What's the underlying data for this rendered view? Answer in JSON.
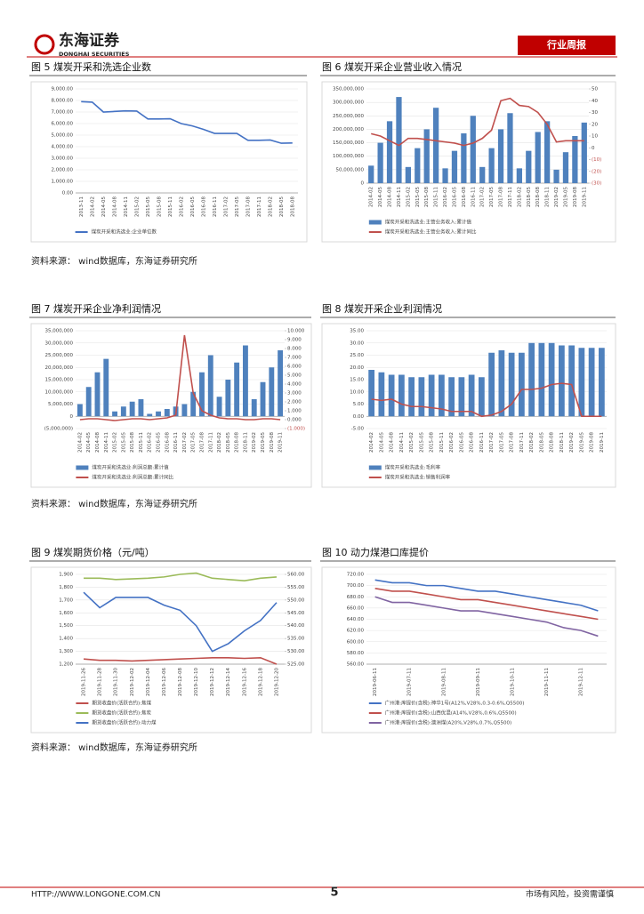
{
  "header": {
    "logo": "东海证券",
    "logo_en": "DONGHAI SECURITIES",
    "tag": "行业周报"
  },
  "sources": [
    "资料来源：  wind数据库，东海证券研究所",
    "资料来源：  wind数据库，东海证券研究所",
    "资料来源：  wind数据库，东海证券研究所"
  ],
  "footer": {
    "url": "HTTP://WWW.LONGONE.COM.CN",
    "page": "5",
    "disclaimer": "市场有风险，投资需谨慎"
  },
  "chart_data": [
    {
      "type": "line",
      "title": "图 5   煤炭开采和洗选企业数",
      "grid": true,
      "categories": [
        "2013-11",
        "2014-02",
        "2014-05",
        "2014-08",
        "2014-11",
        "2015-02",
        "2015-05",
        "2015-08",
        "2015-11",
        "2016-02",
        "2016-05",
        "2016-08",
        "2016-11",
        "2017-02",
        "2017-05",
        "2017-08",
        "2017-11",
        "2018-02",
        "2018-05",
        "2018-08"
      ],
      "series": [
        {
          "name": "煤炭开采和洗选业:企业单位数",
          "color": "#4472c4",
          "values": [
            7900,
            7850,
            7000,
            7050,
            7100,
            7080,
            6400,
            6400,
            6420,
            6000,
            5800,
            5500,
            5150,
            5150,
            5150,
            4550,
            4550,
            4580,
            4300,
            4320
          ]
        }
      ],
      "ylim": [
        0,
        9000
      ],
      "yticks": [
        {
          "value": 0,
          "label": "0.00"
        },
        {
          "value": 1000,
          "label": "1,000.00"
        },
        {
          "value": 2000,
          "label": "2,000.00"
        },
        {
          "value": 3000,
          "label": "3,000.00"
        },
        {
          "value": 4000,
          "label": "4,000.00"
        },
        {
          "value": 5000,
          "label": "5,000.00"
        },
        {
          "value": 6000,
          "label": "6,000.00"
        },
        {
          "value": 7000,
          "label": "7,000.00"
        },
        {
          "value": 8000,
          "label": "8,000.00"
        },
        {
          "value": 9000,
          "label": "9,000.00"
        }
      ]
    },
    {
      "type": "combo",
      "title": "图 6   煤炭开采企业营业收入情况",
      "grid": true,
      "categories": [
        "2014-02",
        "2014-05",
        "2014-08",
        "2014-11",
        "2015-02",
        "2015-05",
        "2015-08",
        "2015-11",
        "2016-02",
        "2016-05",
        "2016-08",
        "2016-11",
        "2017-02",
        "2017-05",
        "2017-08",
        "2017-11",
        "2018-02",
        "2018-05",
        "2018-08",
        "2018-11",
        "2019-02",
        "2019-05",
        "2019-08",
        "2019-11"
      ],
      "series": [
        {
          "name": "煤炭开采和洗选业:主营业务收入:累计值",
          "type": "bar",
          "color": "#4f81bd",
          "values": [
            65000000,
            150000000,
            230000000,
            320000000,
            60000000,
            130000000,
            200000000,
            280000000,
            55000000,
            120000000,
            185000000,
            250000000,
            60000000,
            130000000,
            200000000,
            260000000,
            55000000,
            120000000,
            190000000,
            230000000,
            50000000,
            115000000,
            175000000,
            225000000
          ]
        },
        {
          "name": "煤炭开采和洗选业:主营业务收入:累计同比",
          "type": "line",
          "axis": "y2",
          "color": "#c0504d",
          "values": [
            12,
            10,
            6,
            2,
            8,
            8,
            7,
            6,
            5,
            4,
            2,
            4,
            8,
            15,
            40,
            42,
            36,
            35,
            30,
            20,
            5,
            6,
            6,
            6
          ]
        }
      ],
      "ylim": [
        0,
        350000000
      ],
      "yticks": [
        0,
        {
          "value": 50000000,
          "label": "50,000,000"
        },
        {
          "value": 100000000,
          "label": "100,000,000"
        },
        {
          "value": 150000000,
          "label": "150,000,000"
        },
        {
          "value": 200000000,
          "label": "200,000,000"
        },
        {
          "value": 250000000,
          "label": "250,000,000"
        },
        {
          "value": 300000000,
          "label": "300,000,000"
        },
        {
          "value": 350000000,
          "label": "350,000,000"
        }
      ],
      "y2lim": [
        -30,
        50
      ],
      "y2ticks": [
        {
          "value": -30,
          "label": "(30)"
        },
        {
          "value": -20,
          "label": "(20)"
        },
        {
          "value": -10,
          "label": "(10)"
        },
        0,
        10,
        20,
        30,
        40,
        50
      ]
    },
    {
      "type": "combo",
      "title": "图 7   煤炭开采企业净利润情况",
      "grid": true,
      "categories": [
        "2014-02",
        "2014-05",
        "2014-08",
        "2014-11",
        "2015-02",
        "2015-05",
        "2015-08",
        "2015-11",
        "2016-02",
        "2016-05",
        "2016-08",
        "2016-11",
        "2017-02",
        "2017-05",
        "2017-08",
        "2017-11",
        "2018-02",
        "2018-05",
        "2018-08",
        "2018-11",
        "2019-02",
        "2019-05",
        "2019-08",
        "2019-11"
      ],
      "series": [
        {
          "name": "煤炭开采和洗选业:利润总额:累计值",
          "type": "bar",
          "color": "#4f81bd",
          "values": [
            5000000,
            12000000,
            18000000,
            23500000,
            2000000,
            4000000,
            6000000,
            7000000,
            1000000,
            2000000,
            3000000,
            4000000,
            5000000,
            10000000,
            18000000,
            25000000,
            8000000,
            15000000,
            22000000,
            29000000,
            7000000,
            14000000,
            20000000,
            27000000
          ]
        },
        {
          "name": "煤炭开采和洗选业:利润总额:累计同比",
          "type": "line",
          "axis": "y2",
          "color": "#c0504d",
          "values": [
            0,
            0.1,
            0.1,
            0,
            -0.1,
            0,
            0.1,
            0.1,
            0,
            0.1,
            0.2,
            0.5,
            9.5,
            3,
            1,
            0.5,
            0.2,
            0.1,
            0.1,
            0,
            0,
            0.1,
            0.1,
            0
          ]
        }
      ],
      "ylim": [
        -5000000,
        35000000
      ],
      "yticks": [
        {
          "value": -5000000,
          "label": "(5,000,000)"
        },
        0,
        {
          "value": 5000000,
          "label": "5,000,000"
        },
        {
          "value": 10000000,
          "label": "10,000,000"
        },
        {
          "value": 15000000,
          "label": "15,000,000"
        },
        {
          "value": 20000000,
          "label": "20,000,000"
        },
        {
          "value": 25000000,
          "label": "25,000,000"
        },
        {
          "value": 30000000,
          "label": "30,000,000"
        },
        {
          "value": 35000000,
          "label": "35,000,000"
        }
      ],
      "y2lim": [
        -1,
        10
      ],
      "y2ticks": [
        {
          "value": -1,
          "label": "(1.000)"
        },
        {
          "value": 0,
          "label": "0.000"
        },
        {
          "value": 1,
          "label": "1.000"
        },
        {
          "value": 2,
          "label": "2.000"
        },
        {
          "value": 3,
          "label": "3.000"
        },
        {
          "value": 4,
          "label": "4.000"
        },
        {
          "value": 5,
          "label": "5.000"
        },
        {
          "value": 6,
          "label": "6.000"
        },
        {
          "value": 7,
          "label": "7.000"
        },
        {
          "value": 8,
          "label": "8.000"
        },
        {
          "value": 9,
          "label": "9.000"
        },
        {
          "value": 10,
          "label": "10.000"
        }
      ]
    },
    {
      "type": "combo",
      "title": "图 8   煤炭开采企业利润情况",
      "grid": true,
      "categories": [
        "2014-02",
        "2014-05",
        "2014-08",
        "2014-11",
        "2015-02",
        "2015-05",
        "2015-08",
        "2015-11",
        "2016-02",
        "2016-05",
        "2016-08",
        "2016-11",
        "2017-02",
        "2017-05",
        "2017-08",
        "2017-11",
        "2018-02",
        "2018-05",
        "2018-08",
        "2018-11",
        "2019-02",
        "2019-05",
        "2019-08",
        "2019-11"
      ],
      "series": [
        {
          "name": "煤炭开采和洗选业:毛利率",
          "type": "bar",
          "color": "#4f81bd",
          "values": [
            19,
            18,
            17,
            17,
            16,
            16,
            17,
            17,
            16,
            16,
            17,
            16,
            26,
            27,
            26,
            26,
            30,
            30,
            30,
            29,
            29,
            28,
            28,
            28
          ]
        },
        {
          "name": "煤炭开采和洗选业:销售利润率",
          "type": "line",
          "color": "#c0504d",
          "values": [
            7,
            6.5,
            7,
            5,
            4,
            4,
            3.5,
            3,
            2,
            2,
            2,
            0,
            0.5,
            2,
            5,
            11,
            11,
            11.5,
            13,
            13.5,
            13,
            0,
            0,
            0
          ]
        }
      ],
      "ylim": [
        -5,
        35
      ],
      "yticks": [
        {
          "value": -5,
          "label": "-5.00"
        },
        {
          "value": 0,
          "label": "0.00"
        },
        {
          "value": 5,
          "label": "5.00"
        },
        {
          "value": 10,
          "label": "10.00"
        },
        {
          "value": 15,
          "label": "15.00"
        },
        {
          "value": 20,
          "label": "20.00"
        },
        {
          "value": 25,
          "label": "25.00"
        },
        {
          "value": 30,
          "label": "30.00"
        },
        {
          "value": 35,
          "label": "35.00"
        }
      ]
    },
    {
      "type": "line",
      "title": "图 9   煤炭期货价格（元/吨）",
      "grid": true,
      "categories": [
        "2019-11-26",
        "2019-11-28",
        "2019-11-30",
        "2019-12-02",
        "2019-12-04",
        "2019-12-06",
        "2019-12-08",
        "2019-12-10",
        "2019-12-12",
        "2019-12-14",
        "2019-12-16",
        "2019-12-18",
        "2019-12-20"
      ],
      "series": [
        {
          "name": "期货收盘价(活跃合约):焦煤",
          "color": "#c0504d",
          "values": [
            1240,
            1230,
            1230,
            1225,
            1230,
            1235,
            1240,
            1245,
            1250,
            1250,
            1245,
            1250,
            1200
          ]
        },
        {
          "name": "期货收盘价(活跃合约):焦炭",
          "color": "#9bbb59",
          "values": [
            1870,
            1870,
            1860,
            1865,
            1870,
            1880,
            1900,
            1910,
            1870,
            1860,
            1850,
            1870,
            1880
          ]
        },
        {
          "name": "期货收盘价(活跃合约):动力煤",
          "axis": "y2",
          "color": "#4472c4",
          "values": [
            553,
            547,
            551,
            551,
            551,
            548,
            546,
            540,
            530,
            533,
            538,
            542,
            549
          ]
        }
      ],
      "ylim": [
        1200,
        1900
      ],
      "yticks": [
        {
          "value": 1200,
          "label": "1,200"
        },
        {
          "value": 1300,
          "label": "1,300"
        },
        {
          "value": 1400,
          "label": "1,400"
        },
        {
          "value": 1500,
          "label": "1,500"
        },
        {
          "value": 1600,
          "label": "1,600"
        },
        {
          "value": 1700,
          "label": "1,700"
        },
        {
          "value": 1800,
          "label": "1,800"
        },
        {
          "value": 1900,
          "label": "1,900"
        }
      ],
      "y2lim": [
        525,
        560
      ],
      "y2ticks": [
        {
          "value": 525,
          "label": "525.00"
        },
        {
          "value": 530,
          "label": "530.00"
        },
        {
          "value": 535,
          "label": "535.00"
        },
        {
          "value": 540,
          "label": "540.00"
        },
        {
          "value": 545,
          "label": "545.00"
        },
        {
          "value": 550,
          "label": "550.00"
        },
        {
          "value": 555,
          "label": "555.00"
        },
        {
          "value": 560,
          "label": "560.00"
        }
      ]
    },
    {
      "type": "line",
      "title": "图 10   动力煤港口库提价",
      "grid": true,
      "categories": [
        "2019-06-11",
        null,
        "2019-07-11",
        null,
        "2019-08-11",
        null,
        "2019-09-11",
        null,
        "2019-10-11",
        null,
        "2019-11-11",
        null,
        "2019-12-11",
        null
      ],
      "series": [
        {
          "name": "广州港:库提价(含税):神华1号(A12%,V28%,0.3-0.6%,Q5500)",
          "color": "#4472c4",
          "values": [
            710,
            705,
            705,
            700,
            700,
            695,
            690,
            690,
            685,
            680,
            675,
            670,
            665,
            655
          ]
        },
        {
          "name": "广州港:库提价(含税):山西优混(A14%,V28%,0.6%,Q5500)",
          "color": "#c0504d",
          "values": [
            695,
            690,
            690,
            685,
            680,
            675,
            675,
            670,
            665,
            660,
            655,
            650,
            645,
            640
          ]
        },
        {
          "name": "广州港:库提价(含税):澳洲煤(A20%,V28%,0.7%,Q5500)",
          "color": "#8064a2",
          "values": [
            680,
            670,
            670,
            665,
            660,
            655,
            655,
            650,
            645,
            640,
            635,
            625,
            620,
            610
          ]
        }
      ],
      "ylim": [
        560,
        720
      ],
      "yticks": [
        {
          "value": 560,
          "label": "560.00"
        },
        {
          "value": 580,
          "label": "580.00"
        },
        {
          "value": 600,
          "label": "600.00"
        },
        {
          "value": 620,
          "label": "620.00"
        },
        {
          "value": 640,
          "label": "640.00"
        },
        {
          "value": 660,
          "label": "660.00"
        },
        {
          "value": 680,
          "label": "680.00"
        },
        {
          "value": 700,
          "label": "700.00"
        },
        {
          "value": 720,
          "label": "720.00"
        }
      ]
    }
  ]
}
